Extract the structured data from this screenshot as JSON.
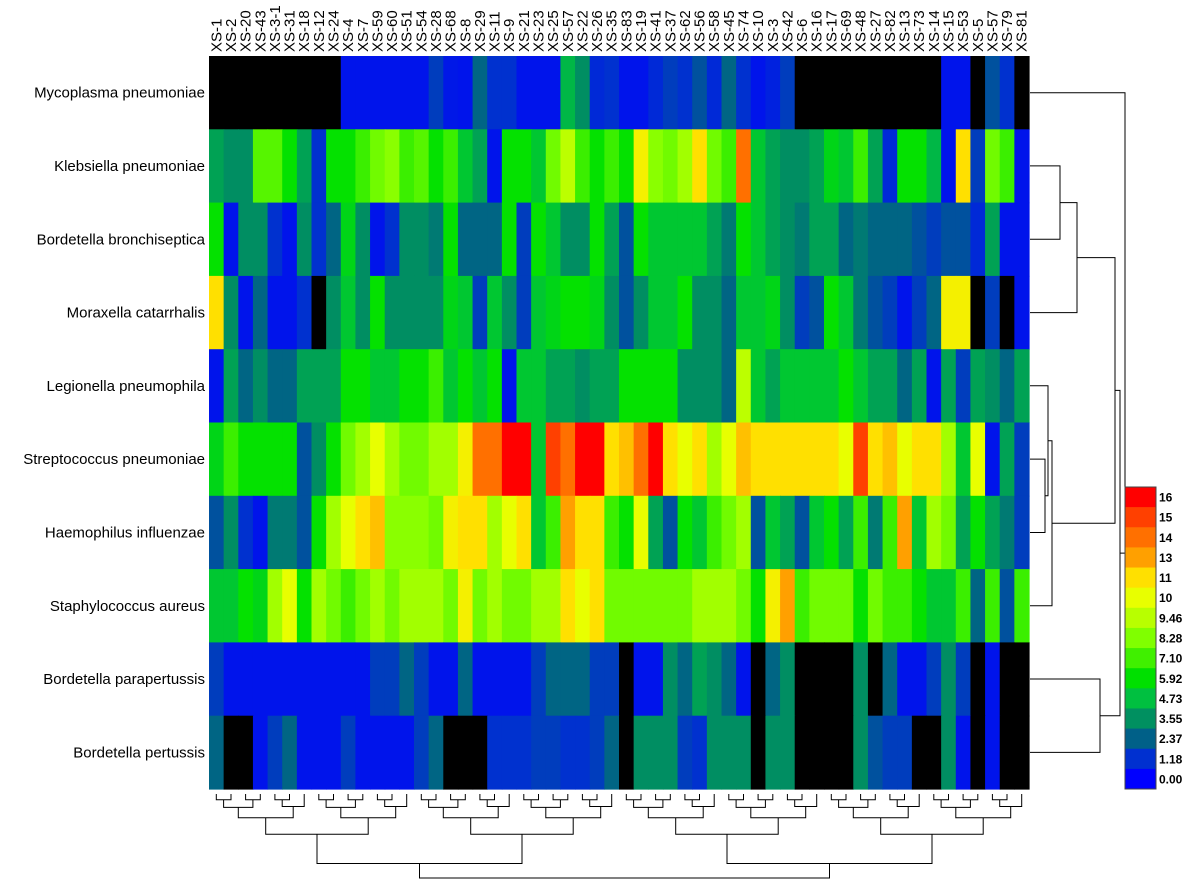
{
  "chart_data": {
    "type": "heatmap",
    "title": "",
    "xlabel": "",
    "ylabel": "",
    "rows": [
      "Mycoplasma pneumoniae",
      "Klebsiella pneumoniae",
      "Bordetella bronchiseptica",
      "Moraxella catarrhalis",
      "Legionella pneumophila",
      "Streptococcus pneumoniae",
      "Haemophilus influenzae",
      "Staphylococcus aureus",
      "Bordetella parapertussis",
      "Bordetella pertussis"
    ],
    "columns": [
      "XS-1",
      "XS-2",
      "XS-20",
      "XS-43",
      "XS-3-1",
      "XS-31",
      "XS-18",
      "XS-12",
      "XS-24",
      "XS-4",
      "XS-7",
      "XS-59",
      "XS-60",
      "XS-51",
      "XS-54",
      "XS-28",
      "XS-68",
      "XS-8",
      "XS-29",
      "XS-11",
      "XS-9",
      "XS-21",
      "XS-23",
      "XS-25",
      "XS-57",
      "XS-22",
      "XS-26",
      "XS-35",
      "XS-83",
      "XS-19",
      "XS-41",
      "XS-37",
      "XS-62",
      "XS-56",
      "XS-58",
      "XS-45",
      "XS-74",
      "XS-10",
      "XS-3",
      "XS-42",
      "XS-6",
      "XS-16",
      "XS-17",
      "XS-69",
      "XS-48",
      "XS-27",
      "XS-82",
      "XS-13",
      "XS-73",
      "XS-14",
      "XS-15",
      "XS-53",
      "XS-5",
      "XS-57",
      "XS-79",
      "XS-81"
    ],
    "legend": {
      "ticks": [
        "16",
        "15",
        "14",
        "13",
        "11",
        "10",
        "9.46",
        "8.28",
        "7.10",
        "5.92",
        "4.73",
        "3.55",
        "2.37",
        "1.18",
        "0.00"
      ],
      "colors": [
        "#ff0000",
        "#ff4000",
        "#ff7000",
        "#ffa000",
        "#ffe000",
        "#e8ff00",
        "#b8ff00",
        "#80ff00",
        "#40f000",
        "#00e000",
        "#00c040",
        "#009060",
        "#006088",
        "#0030d0",
        "#0000ff"
      ]
    },
    "missing_color": "#000000",
    "values": [
      [
        null,
        null,
        null,
        null,
        null,
        null,
        null,
        null,
        null,
        0.5,
        0.5,
        0.5,
        0.5,
        0.5,
        0.5,
        1.5,
        0.6,
        0.5,
        2.5,
        1.2,
        1.2,
        0.5,
        0.5,
        0.5,
        4.5,
        3.5,
        1,
        1.2,
        0.5,
        0.5,
        1,
        1.5,
        1.2,
        2,
        1,
        2.5,
        1.2,
        0.5,
        0.8,
        1.5,
        null,
        null,
        null,
        null,
        null,
        null,
        null,
        null,
        null,
        null,
        0.5,
        0.5,
        null,
        2,
        1.2,
        null
      ],
      [
        4,
        3.5,
        3.5,
        7.5,
        7.5,
        6,
        4,
        1.2,
        6,
        6,
        7,
        8,
        8.5,
        7,
        7.5,
        6,
        7,
        5,
        4,
        0.5,
        6,
        6,
        5,
        8,
        9.5,
        7,
        6,
        7,
        6,
        10.5,
        8.5,
        8,
        9,
        11,
        8,
        7,
        14,
        5,
        4,
        3.5,
        3.5,
        4,
        5.5,
        5,
        7,
        4,
        1,
        6,
        6,
        4.5,
        0.5,
        11,
        1.5,
        8,
        7,
        0.5
      ],
      [
        6,
        0.5,
        3.5,
        3.5,
        1.2,
        0.5,
        3.5,
        1.2,
        2.5,
        5.5,
        3.5,
        0.5,
        1.2,
        3.5,
        3.5,
        3,
        6,
        2.5,
        2.5,
        2.5,
        6,
        1.5,
        6,
        5,
        3.5,
        3.5,
        6,
        4,
        2,
        6,
        5,
        5,
        5,
        5,
        4,
        3,
        6,
        5,
        4,
        3.5,
        3,
        4,
        4,
        2.5,
        3,
        2.5,
        2.5,
        2.5,
        2,
        1.5,
        2,
        2,
        1,
        4,
        0.5,
        0.5
      ],
      [
        11,
        3.5,
        0.5,
        2.5,
        0.5,
        0.5,
        1.2,
        null,
        3.5,
        5,
        3.5,
        6,
        3.5,
        3.5,
        3.5,
        3.5,
        5.5,
        5,
        1.5,
        5,
        3.5,
        1.5,
        5,
        5.5,
        6,
        6,
        5.5,
        3.5,
        2,
        3.5,
        5,
        5,
        6,
        3.5,
        3.5,
        2.5,
        5,
        5,
        5.5,
        3.5,
        1.5,
        2,
        6,
        5,
        3,
        2,
        1.5,
        0.5,
        1.5,
        2.5,
        10.5,
        10.5,
        null,
        1.5,
        null,
        0.5
      ],
      [
        0.5,
        4,
        2.5,
        3.5,
        2.5,
        2.5,
        4,
        4,
        4,
        6,
        6,
        5,
        5,
        6,
        6,
        7,
        5,
        6,
        5,
        6,
        0.5,
        5,
        5,
        4,
        4,
        3.5,
        4,
        4,
        6,
        6,
        6,
        6,
        3.5,
        3.5,
        3.5,
        2.5,
        9.5,
        5,
        4,
        5,
        5,
        5,
        5,
        6,
        5,
        4,
        4,
        2.5,
        4,
        0.5,
        4,
        1.5,
        4,
        3.5,
        2.5,
        4
      ],
      [
        5.5,
        7,
        6,
        6,
        6,
        6,
        2,
        3.5,
        6,
        8,
        9,
        10,
        9,
        8,
        8,
        9,
        9,
        10.5,
        14,
        14,
        16,
        16,
        5,
        15,
        14,
        16,
        16,
        11,
        12,
        14,
        16,
        11,
        10,
        11,
        9,
        10,
        12,
        11,
        11,
        11,
        11,
        11,
        11,
        10,
        15,
        11,
        12,
        10,
        11,
        11,
        9,
        5,
        10,
        0.5,
        4,
        1.5
      ],
      [
        2,
        3.5,
        1.2,
        0.5,
        3,
        3,
        2,
        6,
        9,
        10,
        11,
        12,
        8.5,
        8.5,
        8.5,
        8,
        10.5,
        11,
        11,
        9,
        10,
        11,
        5,
        7,
        13,
        11,
        11,
        7,
        6,
        10,
        4,
        2,
        6,
        5,
        7,
        8,
        9,
        2,
        5,
        4,
        2,
        5,
        6,
        4,
        7,
        3,
        7,
        13,
        5,
        9,
        8,
        4,
        6,
        4,
        3,
        1.5
      ],
      [
        5,
        5,
        6,
        5.5,
        9,
        10,
        6,
        9,
        8,
        7,
        8,
        9,
        8,
        9,
        9,
        9,
        8,
        10.5,
        8,
        9,
        8,
        8,
        9,
        9,
        11,
        10,
        11,
        8,
        8,
        8,
        8,
        8,
        8,
        9,
        9,
        9,
        8,
        6,
        10.5,
        13,
        7,
        8,
        8,
        8,
        6,
        8,
        7,
        7,
        6,
        5,
        5,
        7,
        2.5,
        7,
        2,
        7
      ],
      [
        1.5,
        0.5,
        0.5,
        0.5,
        0.5,
        0.5,
        0.5,
        0.5,
        0.5,
        0.5,
        0.5,
        1.5,
        1.5,
        2.5,
        1.5,
        0.5,
        0.5,
        2.5,
        0.5,
        0.5,
        0.5,
        0.5,
        1.5,
        2.5,
        2.5,
        2.5,
        1.5,
        1.5,
        null,
        0.5,
        0.5,
        3.5,
        2.5,
        4,
        3.5,
        2.5,
        0.5,
        null,
        2.5,
        3.5,
        null,
        null,
        null,
        null,
        3.5,
        null,
        2.5,
        0.5,
        0.5,
        1.5,
        3.5,
        1.5,
        null,
        0.5,
        null,
        null
      ],
      [
        2.5,
        null,
        null,
        0.5,
        1.5,
        2.5,
        0.5,
        0.5,
        0.5,
        1.5,
        0.5,
        0.5,
        0.5,
        0.5,
        1.5,
        2.5,
        null,
        null,
        null,
        1.2,
        1.2,
        1.2,
        1.5,
        1.5,
        1.2,
        1.2,
        1.5,
        2.5,
        null,
        3.5,
        3.5,
        3.5,
        1.5,
        1.2,
        3.5,
        3.5,
        3.5,
        null,
        3.5,
        3.5,
        null,
        null,
        null,
        null,
        3.5,
        2,
        1.5,
        1.5,
        null,
        null,
        3.5,
        0.5,
        null,
        0.5,
        null,
        null
      ]
    ]
  }
}
